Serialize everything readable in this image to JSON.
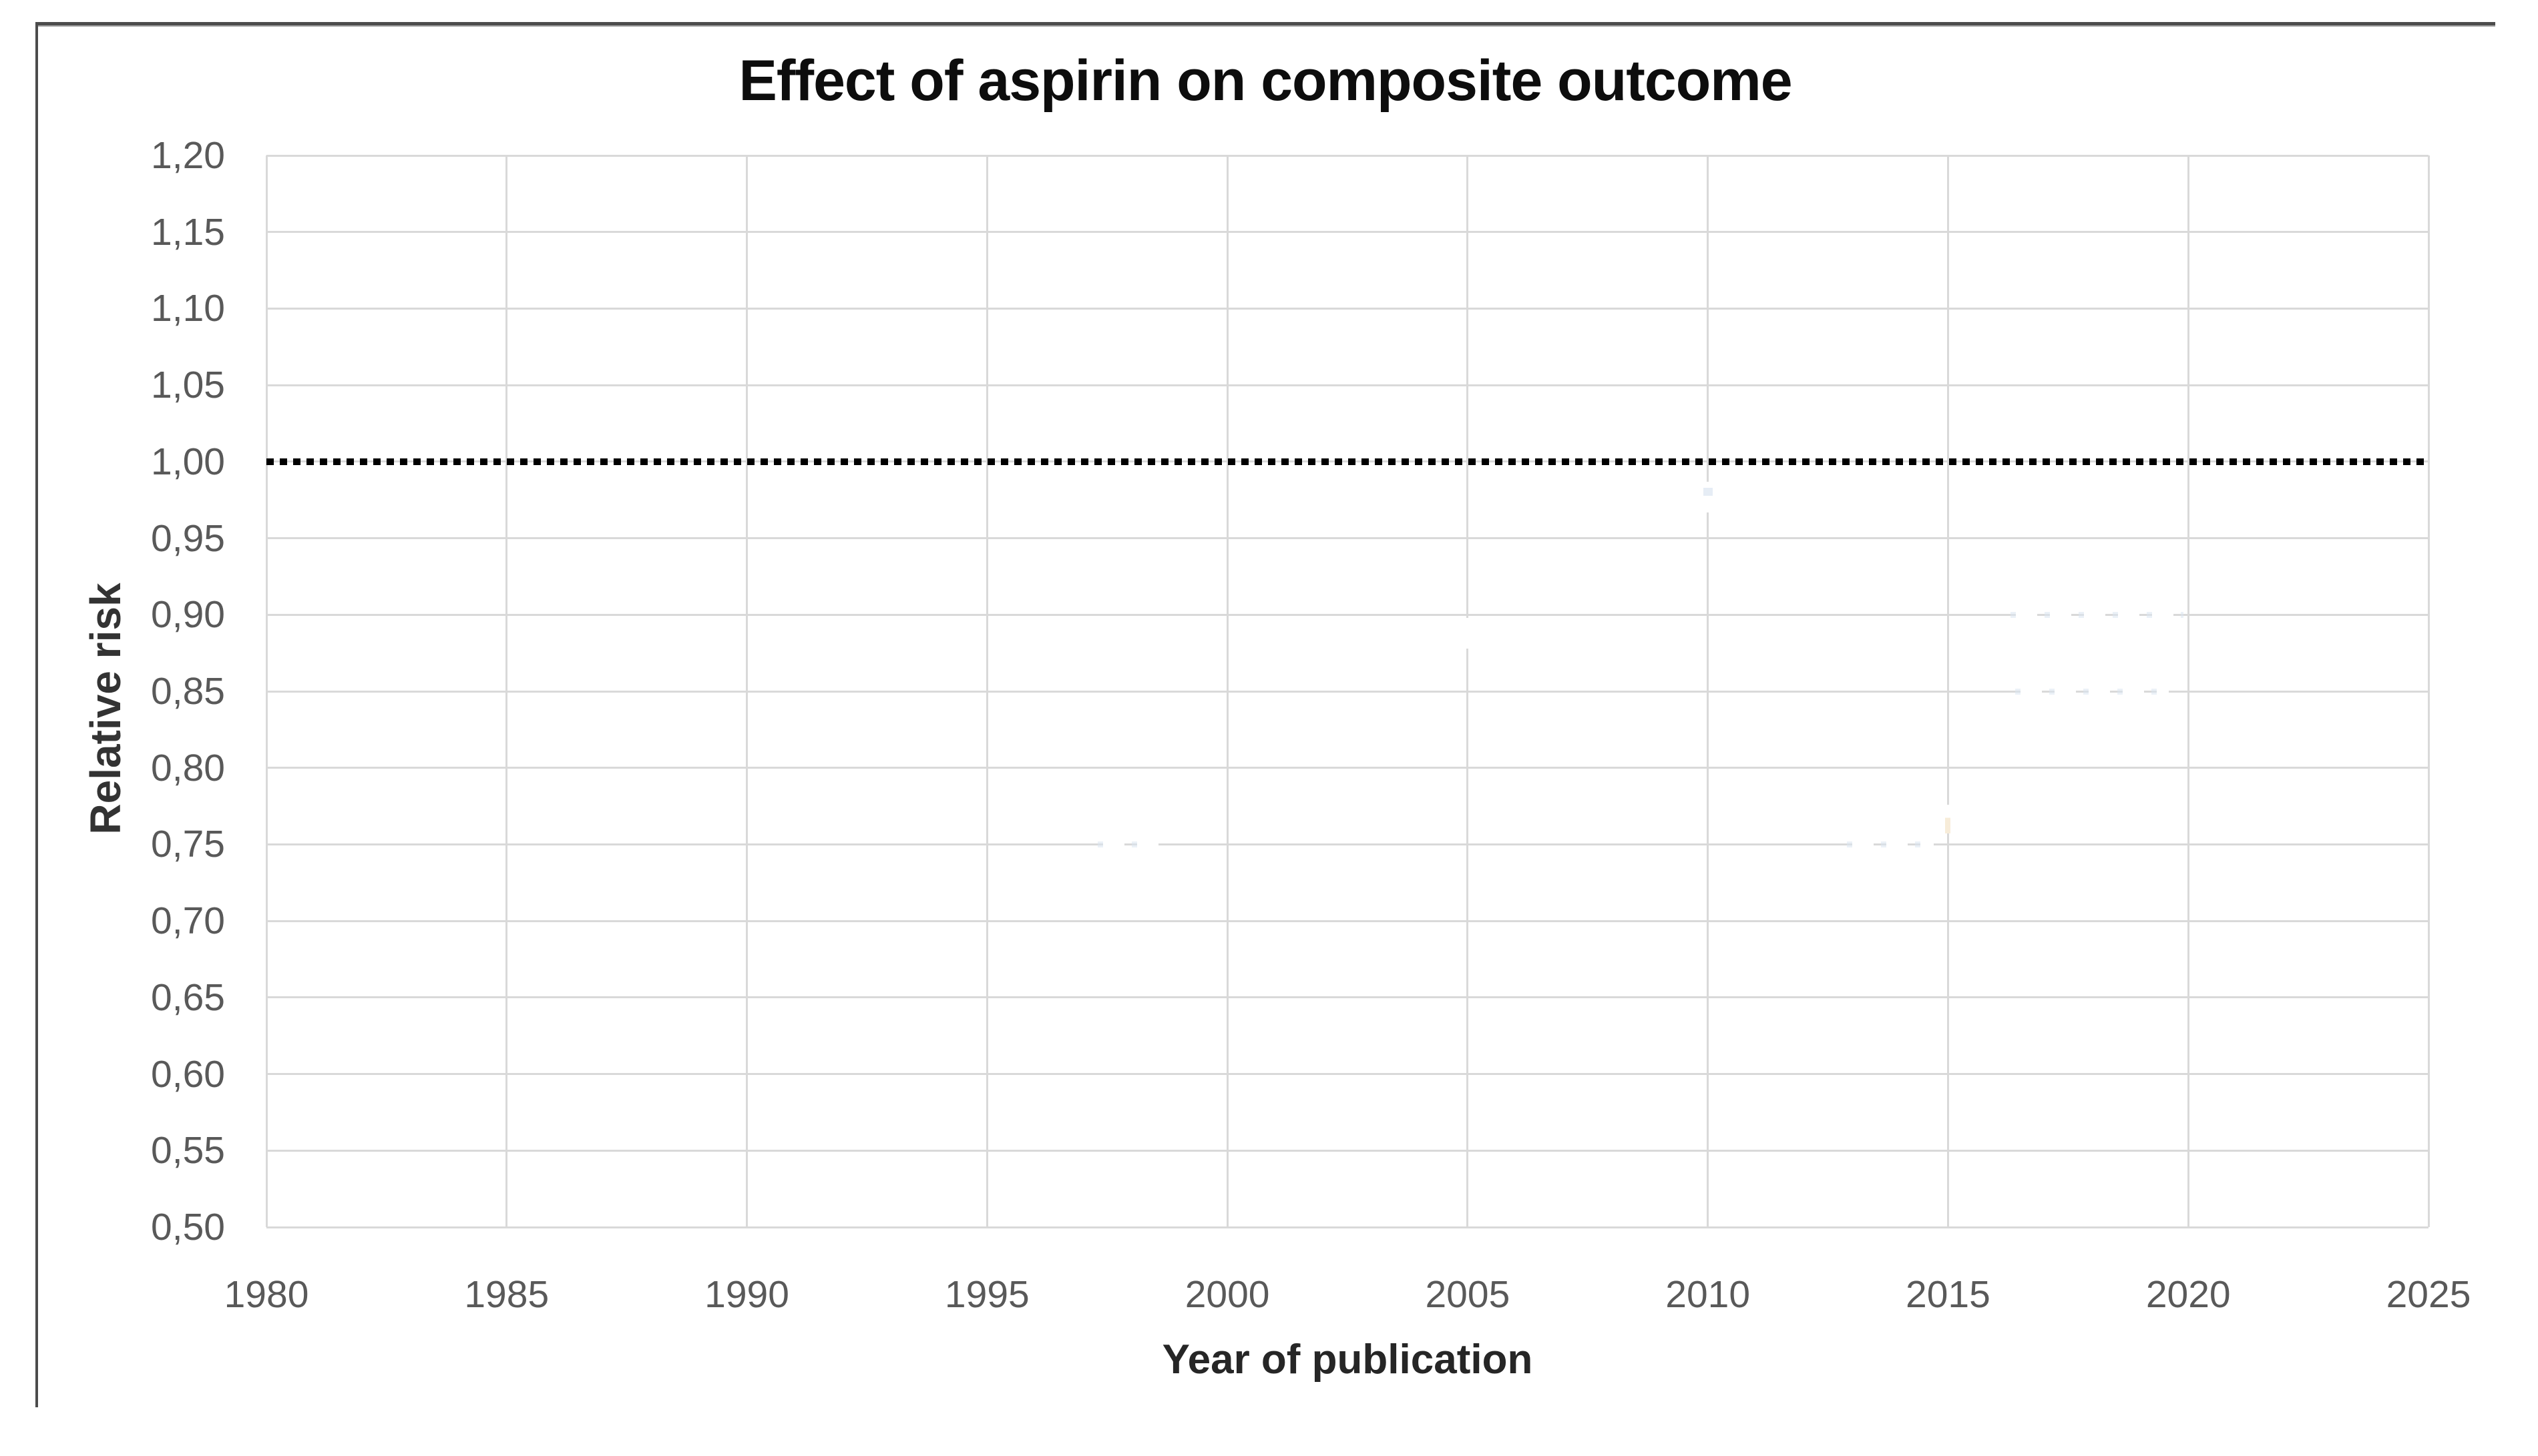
{
  "chart_data": {
    "type": "scatter",
    "title": "Effect of aspirin on composite outcome",
    "xlabel": "Year of publication",
    "ylabel": "Relative risk",
    "xlim": [
      1980,
      2025
    ],
    "ylim": [
      0.5,
      1.2
    ],
    "x_ticks": [
      1980,
      1985,
      1990,
      1995,
      2000,
      2005,
      2010,
      2015,
      2020,
      2025
    ],
    "x_tick_labels": [
      "1980",
      "1985",
      "1990",
      "1995",
      "2000",
      "2005",
      "2010",
      "2015",
      "2020",
      "2025"
    ],
    "y_ticks": [
      1.2,
      1.15,
      1.1,
      1.05,
      1.0,
      0.95,
      0.9,
      0.85,
      0.8,
      0.75,
      0.7,
      0.65,
      0.6,
      0.55,
      0.5
    ],
    "y_tick_labels": [
      "1,20",
      "1,15",
      "1,10",
      "1,05",
      "1,00",
      "0,95",
      "0,90",
      "0,85",
      "0,80",
      "0,75",
      "0,70",
      "0,65",
      "0,60",
      "0,55",
      "0,50"
    ],
    "decimal_separator": ",",
    "grid": "on",
    "legend": "none",
    "series": [],
    "reference_line": {
      "y": 1.0,
      "x_start": 1980,
      "x_end": 2025,
      "style": "square-dotted",
      "color": "#000000"
    },
    "notes": "No visible data points are plotted; only a black dotted reference line at relative risk 1,00 spans the plot. Faint white remnants (hidden/erased series fragments) overlap some gridlines.",
    "artifacts": [
      {
        "kind": "label-gap",
        "year": 2005,
        "rr": 0.888
      },
      {
        "kind": "label-gap",
        "year": 2010,
        "rr": 0.977,
        "tint": "blue"
      },
      {
        "kind": "dash-row",
        "rr": 0.9,
        "year_start": 2016.3,
        "year_end": 2019.9
      },
      {
        "kind": "dash-row",
        "rr": 0.85,
        "year_start": 2016.4,
        "year_end": 2019.6
      },
      {
        "kind": "dash-row",
        "rr": 0.75,
        "year_start": 1997.3,
        "year_end": 1998.7
      },
      {
        "kind": "dash-row",
        "rr": 0.75,
        "year_start": 2012.9,
        "year_end": 2014.7
      },
      {
        "kind": "tick-gap",
        "year": 2015,
        "rr_start": 0.757,
        "rr_end": 0.776
      }
    ],
    "colors": {
      "background": "#ffffff",
      "gridline": "#d9d9d9",
      "tick_label": "#595959",
      "title": "#0d0d0d",
      "axis_title": "#262626",
      "reference_line": "#000000",
      "frame_border": "#4c4c4c",
      "artifact_tint_blue": "#dbe5f1",
      "artifact_tint_cream": "#f7ecd9"
    }
  }
}
